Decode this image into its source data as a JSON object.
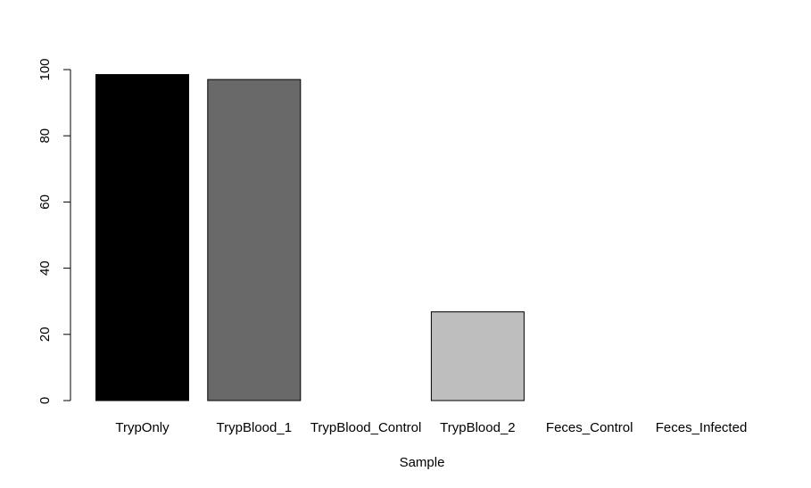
{
  "chart_data": {
    "type": "bar",
    "categories": [
      "TrypOnly",
      "TrypBlood_1",
      "TrypBlood_Control",
      "TrypBlood_2",
      "Feces_Control",
      "Feces_Infected"
    ],
    "values": [
      98.5,
      97,
      0,
      26.8,
      0,
      0
    ],
    "colors": [
      "#000000",
      "#696969",
      "#ffffff",
      "#bebebe",
      "#ffffff",
      "#ffffff"
    ],
    "title": "",
    "xlabel": "Sample",
    "ylabel": "",
    "ylim": [
      0,
      100
    ],
    "yticks": [
      0,
      20,
      40,
      60,
      80,
      100
    ],
    "grid": false,
    "legend": "none"
  }
}
